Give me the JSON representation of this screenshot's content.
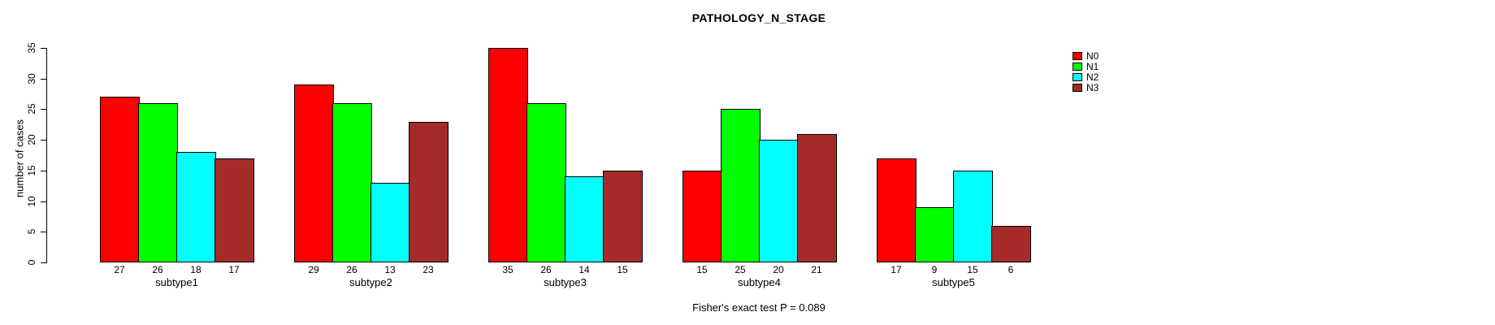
{
  "page": {
    "title": "PATHOLOGY_N_STAGE",
    "footer_note": "Fisher's exact test P = 0.089"
  },
  "chart_data": {
    "type": "bar",
    "title": "PATHOLOGY_N_STAGE",
    "xlabel": "",
    "ylabel": "number of cases",
    "categories": [
      "subtype1",
      "subtype2",
      "subtype3",
      "subtype4",
      "subtype5"
    ],
    "series": [
      {
        "name": "N0",
        "color": "#ff0000",
        "values": [
          27,
          29,
          35,
          15,
          17
        ]
      },
      {
        "name": "N1",
        "color": "#00ff00",
        "values": [
          26,
          26,
          26,
          25,
          9
        ]
      },
      {
        "name": "N2",
        "color": "#00ffff",
        "values": [
          18,
          13,
          14,
          20,
          15
        ]
      },
      {
        "name": "N3",
        "color": "#a52a2a",
        "values": [
          17,
          23,
          15,
          21,
          6
        ]
      }
    ],
    "ylim": [
      0,
      35
    ],
    "yticks": [
      0,
      5,
      10,
      15,
      20,
      25,
      30,
      35
    ],
    "grid": false,
    "legend_position": "right",
    "bar_value_labels": true,
    "annotation": "Fisher's exact test P = 0.089"
  }
}
